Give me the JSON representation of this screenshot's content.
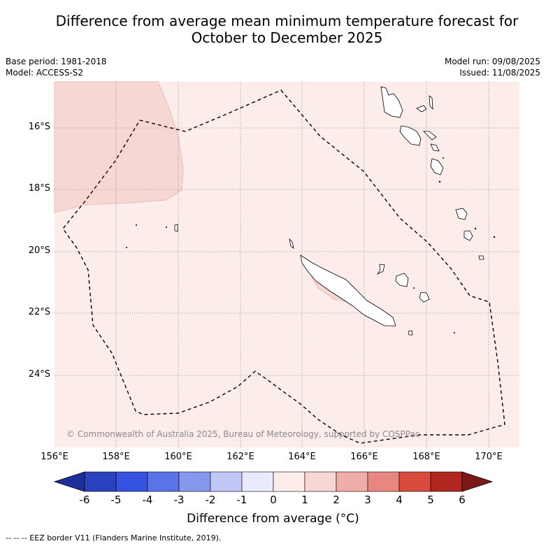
{
  "title_line1": "Difference from average mean minimum temperature forecast for",
  "title_line2": "October to December 2025",
  "base_period": "Base period: 1981-2018",
  "model": "Model: ACCESS-S2",
  "model_run": "Model run: 09/08/2025",
  "issued": "Issued: 11/08/2025",
  "copyright": "© Commonwealth of Australia 2025, Bureau of Meteorology, supported by COSPPac",
  "x_ticks": [
    "156°E",
    "158°E",
    "160°E",
    "162°E",
    "164°E",
    "166°E",
    "168°E",
    "170°E"
  ],
  "y_ticks": [
    "16°S",
    "18°S",
    "20°S",
    "22°S",
    "24°S"
  ],
  "colorbar": {
    "title": "Difference from average (°C)",
    "labels": [
      "-6",
      "-5",
      "-4",
      "-3",
      "-2",
      "-1",
      "0",
      "1",
      "2",
      "3",
      "4",
      "5",
      "6"
    ],
    "colors": [
      "#1f2f9a",
      "#2a42c0",
      "#3552e0",
      "#5a74e8",
      "#8598ec",
      "#c2c8f6",
      "#e8ebfb",
      "#fcecea",
      "#f6d7d3",
      "#f0aca6",
      "#e8877f",
      "#d94b3d",
      "#b1261f",
      "#7a1a16"
    ]
  },
  "map_layers": {
    "background_category": "0 to 1",
    "highlight_category": "1 to 2",
    "background_color": "#fcecea",
    "highlight_color": "#f6d7d3"
  },
  "footnote": "--  --  -- EEZ border V11 (Flanders Marine Institute, 2019)."
}
